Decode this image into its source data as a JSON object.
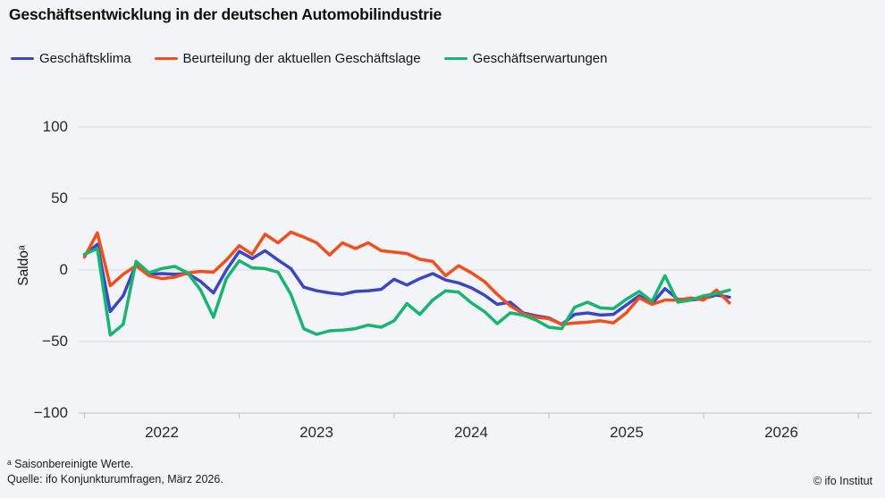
{
  "title": "Geschäftsentwicklung in der deutschen Automobilindustrie",
  "legend": [
    {
      "label": "Geschäftsklima",
      "color": "#3b46c7"
    },
    {
      "label": "Beurteilung der aktuellen Geschäftslage",
      "color": "#f24e1b"
    },
    {
      "label": "Geschäftserwartungen",
      "color": "#17b56f"
    }
  ],
  "y_axis": {
    "label": "Saldoᵃ",
    "tick_labels": [
      "100",
      "50",
      "0",
      "−50",
      "−100"
    ]
  },
  "x_axis": {
    "year_labels": [
      "2022",
      "2023",
      "2024",
      "2025",
      "2026"
    ]
  },
  "footnote": "ᵃ Saisonbereinigte Werte.",
  "source": "Quelle: ifo Konjunkturumfragen, März 2026.",
  "copyright": "© ifo Institut",
  "colors": {
    "background": "#f3f4f8",
    "grid": "#dcdde4",
    "axis": "#c6c9d2"
  },
  "chart_data": {
    "type": "line",
    "title": "Geschäftsentwicklung in der deutschen Automobilindustrie",
    "ylabel": "Saldoᵃ",
    "ylim": [
      -100,
      100
    ],
    "y_ticks": [
      100,
      50,
      0,
      -50,
      -100
    ],
    "grid": true,
    "legend_position": "top",
    "x_start": "2022-01",
    "x_end": "2026-03",
    "x_frequency": "monthly",
    "x_year_ticks": [
      2022,
      2023,
      2024,
      2025,
      2026,
      2027
    ],
    "series": [
      {
        "name": "Geschäftsklima",
        "color": "#3b46c7",
        "values": [
          10.5,
          18,
          -29,
          -18,
          4,
          -3,
          -2.5,
          -3,
          -2.5,
          -8,
          -16,
          0,
          13,
          8,
          13.5,
          7,
          1,
          -12,
          -14.5,
          -16,
          -17,
          -15,
          -14.5,
          -13.5,
          -6.5,
          -10.5,
          -6,
          -2.5,
          -7,
          -9,
          -12.5,
          -17.5,
          -24,
          -22.5,
          -30,
          -32,
          -33.5,
          -38,
          -31,
          -30,
          -31.5,
          -31,
          -24.5,
          -18,
          -23.5,
          -13,
          -20.5,
          -21,
          -20,
          -17.5,
          -19
        ]
      },
      {
        "name": "Beurteilung der aktuellen Geschäftslage",
        "color": "#f24e1b",
        "values": [
          9,
          26,
          -11,
          -3,
          3,
          -4,
          -6,
          -5,
          -2,
          -1,
          -1.5,
          7,
          17,
          11,
          25,
          19,
          26.5,
          23,
          19,
          10.5,
          19,
          15,
          19,
          13.5,
          12.5,
          11.5,
          7.5,
          6,
          -4,
          3,
          -2,
          -8,
          -17,
          -25,
          -30.5,
          -33,
          -34,
          -38,
          -37,
          -36.5,
          -35.5,
          -37,
          -30,
          -19.5,
          -24,
          -21,
          -21,
          -19.5,
          -21,
          -14,
          -23
        ]
      },
      {
        "name": "Geschäftserwartungen",
        "color": "#17b56f",
        "values": [
          11,
          15,
          -45.5,
          -38,
          6,
          -2,
          1,
          2.5,
          -2,
          -14,
          -33,
          -6,
          6.5,
          1.5,
          1,
          -1.5,
          -17,
          -41,
          -45,
          -42.5,
          -42,
          -41,
          -38.5,
          -40,
          -35.5,
          -23.5,
          -31,
          -21,
          -14.5,
          -15.5,
          -23,
          -29,
          -37.5,
          -30,
          -31.5,
          -35,
          -40,
          -41,
          -26,
          -22.5,
          -26.5,
          -27,
          -20.5,
          -15,
          -22,
          -4,
          -22.5,
          -21,
          -18,
          -16.5,
          -14
        ]
      }
    ]
  }
}
